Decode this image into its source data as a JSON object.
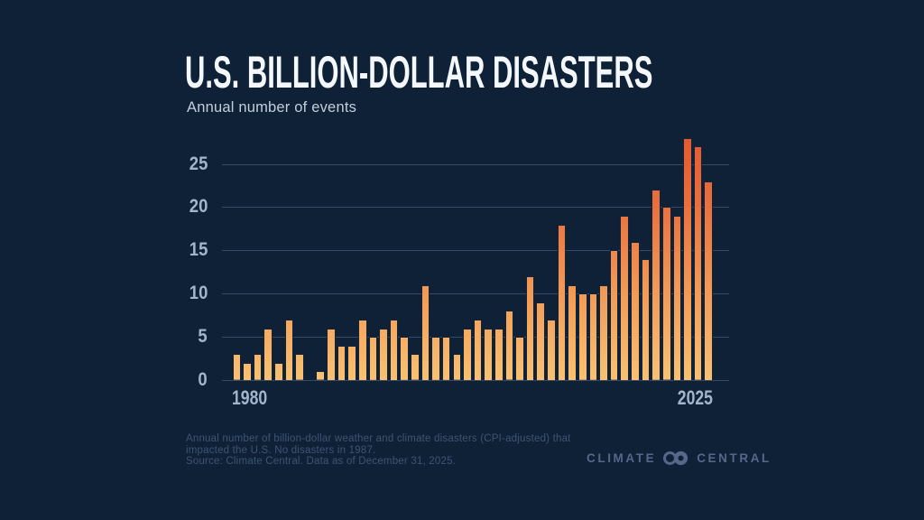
{
  "page": {
    "title": "U.S. BILLION-DOLLAR DISASTERS",
    "subtitle": "Annual number of events"
  },
  "footer": {
    "lines": [
      "Annual number of billion-dollar weather and climate disasters (CPI-adjusted) that",
      "impacted the U.S. No disasters in 1987.",
      "Source: Climate Central. Data as of December 31, 2025."
    ]
  },
  "branding": {
    "word_left": "CLIMATE",
    "word_right": "CENTRAL",
    "logo_icon": "interlocked-rings-icon"
  },
  "colors": {
    "background": "#0e2136",
    "title": "#f4f7fb",
    "subtitle": "#c3cedd",
    "axis_label": "#a3b5cc",
    "gridline": "#344a66",
    "bar_gradient_top": "#e0572f",
    "bar_gradient_bottom": "#f9c172",
    "bar_outline": "#132339",
    "footnote_text": "#3e5473",
    "brand_text": "#55678b"
  },
  "chart_data": {
    "type": "bar",
    "title": "U.S. BILLION-DOLLAR DISASTERS",
    "subtitle": "Annual number of events",
    "x": [
      1980,
      1981,
      1982,
      1983,
      1984,
      1985,
      1986,
      1987,
      1988,
      1989,
      1990,
      1991,
      1992,
      1993,
      1994,
      1995,
      1996,
      1997,
      1998,
      1999,
      2000,
      2001,
      2002,
      2003,
      2004,
      2005,
      2006,
      2007,
      2008,
      2009,
      2010,
      2011,
      2012,
      2013,
      2014,
      2015,
      2016,
      2017,
      2018,
      2019,
      2020,
      2021,
      2022,
      2023,
      2024,
      2025
    ],
    "values": [
      3,
      2,
      3,
      6,
      2,
      7,
      3,
      0,
      1,
      6,
      4,
      4,
      7,
      5,
      6,
      7,
      5,
      3,
      11,
      5,
      5,
      3,
      6,
      7,
      6,
      6,
      8,
      5,
      12,
      9,
      7,
      18,
      11,
      10,
      10,
      11,
      15,
      19,
      16,
      14,
      22,
      20,
      19,
      28,
      27,
      23
    ],
    "xlabel": "",
    "ylabel": "",
    "yticks": [
      0,
      5,
      10,
      15,
      20,
      25
    ],
    "ylim": [
      0,
      29.2
    ],
    "xtick_labels": [
      "1980",
      "2025"
    ],
    "grid": "horizontal gridlines at yticks",
    "legend": "none",
    "annotation": "No disasters in 1987 (no bar drawn)"
  }
}
